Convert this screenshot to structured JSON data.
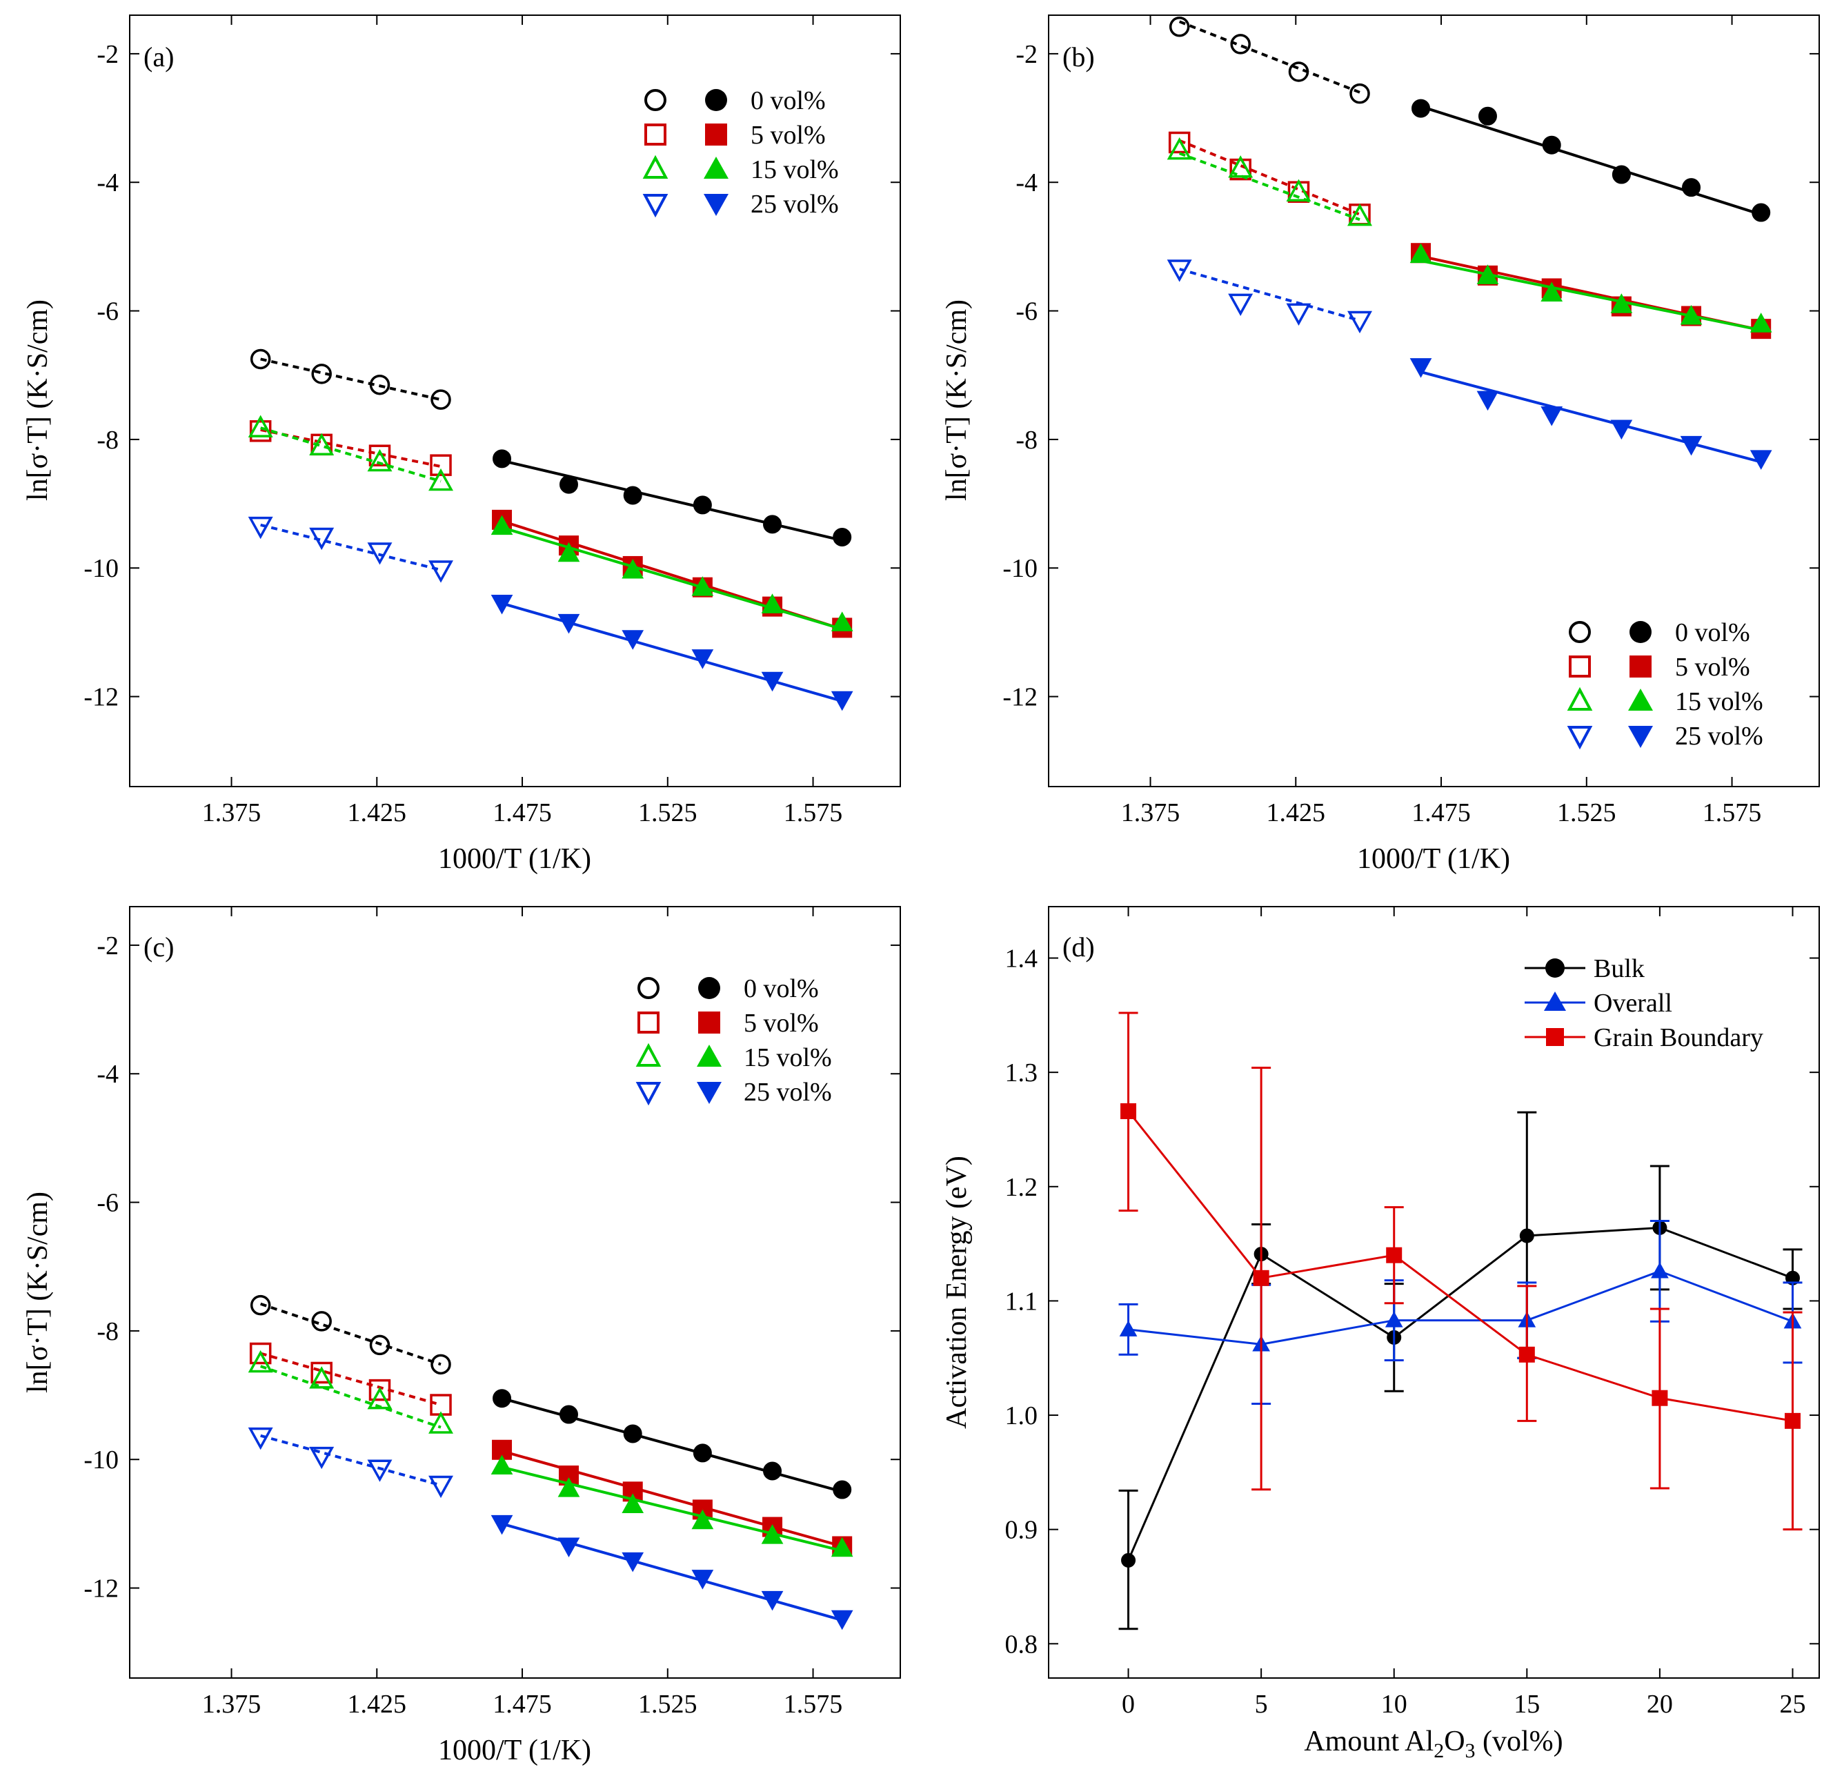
{
  "colors": {
    "s0": "#000000",
    "s5": "#cc0000",
    "s15": "#00cc00",
    "s25": "#0033dd",
    "bulk": "#000000",
    "overall": "#0033dd",
    "gb": "#dd0000"
  },
  "arrhenius_xlabel": "1000/T (1/K)",
  "arrhenius_ylabel": "ln[σ·T] (K·S/cm)",
  "series_labels": [
    "0 vol%",
    "5 vol%",
    "15 vol%",
    "25 vol%"
  ],
  "chart_data": [
    {
      "type": "scatter",
      "panel": "(a)",
      "xlabel": "1000/T (1/K)",
      "ylabel": "ln[σ·T] (K·S/cm)",
      "xlim": [
        1.34,
        1.605
      ],
      "ylim": [
        -13.4,
        -1.4
      ],
      "xticks": [
        "1.375",
        "1.425",
        "1.475",
        "1.525",
        "1.575"
      ],
      "yticks": [
        "-2",
        "-4",
        "-6",
        "-8",
        "-10",
        "-12"
      ],
      "legend": "top-right",
      "x_low": [
        1.385,
        1.406,
        1.426,
        1.447
      ],
      "x_high": [
        1.468,
        1.491,
        1.513,
        1.537,
        1.561,
        1.585
      ],
      "series": [
        {
          "name": "0 vol%",
          "color_key": "s0",
          "marker": "circle",
          "low": [
            -6.75,
            -6.98,
            -7.15,
            -7.38
          ],
          "high": [
            -8.3,
            -8.7,
            -8.87,
            -9.02,
            -9.32,
            -9.52
          ],
          "fit_low": [
            -6.75,
            -7.38
          ],
          "fit_high": [
            -8.33,
            -9.57
          ]
        },
        {
          "name": "5 vol%",
          "color_key": "s5",
          "marker": "square",
          "low": [
            -7.87,
            -8.08,
            -8.25,
            -8.4
          ],
          "high": [
            -9.25,
            -9.65,
            -9.97,
            -10.3,
            -10.6,
            -10.93
          ],
          "fit_low": [
            -7.85,
            -8.42
          ],
          "fit_high": [
            -9.27,
            -10.95
          ]
        },
        {
          "name": "15 vol%",
          "color_key": "s15",
          "marker": "triangle-up",
          "low": [
            -7.82,
            -8.1,
            -8.35,
            -8.65
          ],
          "high": [
            -9.35,
            -9.77,
            -10.03,
            -10.3,
            -10.57,
            -10.85
          ],
          "fit_low": [
            -7.82,
            -8.65
          ],
          "fit_high": [
            -9.37,
            -10.95
          ]
        },
        {
          "name": "25 vol%",
          "color_key": "s25",
          "marker": "triangle-down",
          "low": [
            -9.35,
            -9.52,
            -9.75,
            -10.03
          ],
          "high": [
            -10.55,
            -10.85,
            -11.1,
            -11.4,
            -11.75,
            -12.05
          ],
          "fit_low": [
            -9.33,
            -10.03
          ],
          "fit_high": [
            -10.55,
            -12.07
          ]
        }
      ]
    },
    {
      "type": "scatter",
      "panel": "(b)",
      "xlabel": "1000/T (1/K)",
      "ylabel": "ln[σ·T] (K·S/cm)",
      "xlim": [
        1.34,
        1.605
      ],
      "ylim": [
        -13.4,
        -1.4
      ],
      "xticks": [
        "1.375",
        "1.425",
        "1.475",
        "1.525",
        "1.575"
      ],
      "yticks": [
        "-2",
        "-4",
        "-6",
        "-8",
        "-10",
        "-12"
      ],
      "legend": "bottom-right",
      "x_low": [
        1.385,
        1.406,
        1.426,
        1.447
      ],
      "x_high": [
        1.468,
        1.491,
        1.513,
        1.537,
        1.561,
        1.585
      ],
      "series": [
        {
          "name": "0 vol%",
          "color_key": "s0",
          "marker": "circle",
          "low": [
            -1.58,
            -1.85,
            -2.28,
            -2.62
          ],
          "high": [
            -2.85,
            -2.97,
            -3.42,
            -3.88,
            -4.08,
            -4.47
          ],
          "fit_low": [
            -1.5,
            -2.6
          ],
          "fit_high": [
            -2.82,
            -4.5
          ]
        },
        {
          "name": "5 vol%",
          "color_key": "s5",
          "marker": "square",
          "low": [
            -3.38,
            -3.8,
            -4.15,
            -4.5
          ],
          "high": [
            -5.1,
            -5.45,
            -5.65,
            -5.93,
            -6.08,
            -6.28
          ],
          "fit_low": [
            -3.35,
            -4.5
          ],
          "fit_high": [
            -5.15,
            -6.3
          ]
        },
        {
          "name": "15 vol%",
          "color_key": "s15",
          "marker": "triangle-up",
          "low": [
            -3.5,
            -3.78,
            -4.15,
            -4.53
          ],
          "high": [
            -5.12,
            -5.45,
            -5.72,
            -5.9,
            -6.08,
            -6.2
          ],
          "fit_low": [
            -3.55,
            -4.58
          ],
          "fit_high": [
            -5.22,
            -6.3
          ]
        },
        {
          "name": "25 vol%",
          "color_key": "s25",
          "marker": "triangle-down",
          "low": [
            -5.35,
            -5.88,
            -6.03,
            -6.15
          ],
          "high": [
            -6.87,
            -7.38,
            -7.62,
            -7.83,
            -8.08,
            -8.3
          ],
          "fit_low": [
            -5.35,
            -6.15
          ],
          "fit_high": [
            -6.95,
            -8.35
          ]
        }
      ]
    },
    {
      "type": "scatter",
      "panel": "(c)",
      "xlabel": "1000/T (1/K)",
      "ylabel": "ln[σ·T] (K·S/cm)",
      "xlim": [
        1.34,
        1.605
      ],
      "ylim": [
        -13.4,
        -1.4
      ],
      "xticks": [
        "1.375",
        "1.425",
        "1.475",
        "1.525",
        "1.575"
      ],
      "yticks": [
        "-2",
        "-4",
        "-6",
        "-8",
        "-10",
        "-12"
      ],
      "legend": "top-right",
      "x_low": [
        1.385,
        1.406,
        1.426,
        1.447
      ],
      "x_high": [
        1.468,
        1.491,
        1.513,
        1.537,
        1.561,
        1.585
      ],
      "series": [
        {
          "name": "0 vol%",
          "color_key": "s0",
          "marker": "circle",
          "low": [
            -7.6,
            -7.85,
            -8.22,
            -8.52
          ],
          "high": [
            -9.05,
            -9.3,
            -9.6,
            -9.9,
            -10.18,
            -10.47
          ],
          "fit_low": [
            -7.58,
            -8.52
          ],
          "fit_high": [
            -9.05,
            -10.5
          ]
        },
        {
          "name": "5 vol%",
          "color_key": "s5",
          "marker": "square",
          "low": [
            -8.35,
            -8.65,
            -8.92,
            -9.15
          ],
          "high": [
            -9.85,
            -10.25,
            -10.5,
            -10.78,
            -11.05,
            -11.35
          ],
          "fit_low": [
            -8.35,
            -9.15
          ],
          "fit_high": [
            -9.87,
            -11.35
          ]
        },
        {
          "name": "15 vol%",
          "color_key": "s15",
          "marker": "triangle-up",
          "low": [
            -8.5,
            -8.75,
            -9.07,
            -9.45
          ],
          "high": [
            -10.1,
            -10.45,
            -10.7,
            -10.95,
            -11.18,
            -11.38
          ],
          "fit_low": [
            -8.55,
            -9.5
          ],
          "fit_high": [
            -10.12,
            -11.42
          ]
        },
        {
          "name": "25 vol%",
          "color_key": "s25",
          "marker": "triangle-down",
          "low": [
            -9.65,
            -9.95,
            -10.15,
            -10.4
          ],
          "high": [
            -11,
            -11.35,
            -11.58,
            -11.85,
            -12.18,
            -12.48
          ],
          "fit_low": [
            -9.63,
            -10.4
          ],
          "fit_high": [
            -11.0,
            -12.5
          ]
        }
      ]
    },
    {
      "type": "line",
      "panel": "(d)",
      "xlabel_prefix": "Amount Al",
      "xlabel_sub1": "2",
      "xlabel_mid": "O",
      "xlabel_sub2": "3",
      "xlabel_suffix": " (vol%)",
      "ylabel": "Activation Energy (eV)",
      "xlim": [
        -3,
        26
      ],
      "ylim": [
        0.77,
        1.445
      ],
      "x": [
        0,
        5,
        10,
        15,
        20,
        25
      ],
      "xticks": [
        "0",
        "5",
        "10",
        "15",
        "20",
        "25"
      ],
      "yticks": [
        "0.8",
        "0.9",
        "1.0",
        "1.1",
        "1.2",
        "1.3",
        "1.4"
      ],
      "legend": "top-right",
      "series": [
        {
          "name": "Bulk",
          "color_key": "bulk",
          "marker": "circle",
          "values": [
            0.873,
            1.141,
            1.068,
            1.157,
            1.164,
            1.12
          ],
          "err_lo": [
            0.813,
            1.115,
            1.021,
            1.05,
            1.11,
            1.093
          ],
          "err_hi": [
            0.934,
            1.167,
            1.115,
            1.265,
            1.218,
            1.145
          ]
        },
        {
          "name": "Overall",
          "color_key": "overall",
          "marker": "triangle-up",
          "values": [
            1.075,
            1.062,
            1.083,
            1.083,
            1.126,
            1.082
          ],
          "err_lo": [
            1.053,
            1.01,
            1.048,
            1.05,
            1.082,
            1.046
          ],
          "err_hi": [
            1.097,
            1.114,
            1.118,
            1.116,
            1.17,
            1.116
          ]
        },
        {
          "name": "Grain Boundary",
          "color_key": "gb",
          "marker": "square",
          "values": [
            1.266,
            1.12,
            1.14,
            1.053,
            1.015,
            0.995
          ],
          "err_lo": [
            1.179,
            0.935,
            1.098,
            0.995,
            0.936,
            0.9
          ],
          "err_hi": [
            1.352,
            1.304,
            1.182,
            1.113,
            1.093,
            1.09
          ]
        }
      ]
    }
  ]
}
